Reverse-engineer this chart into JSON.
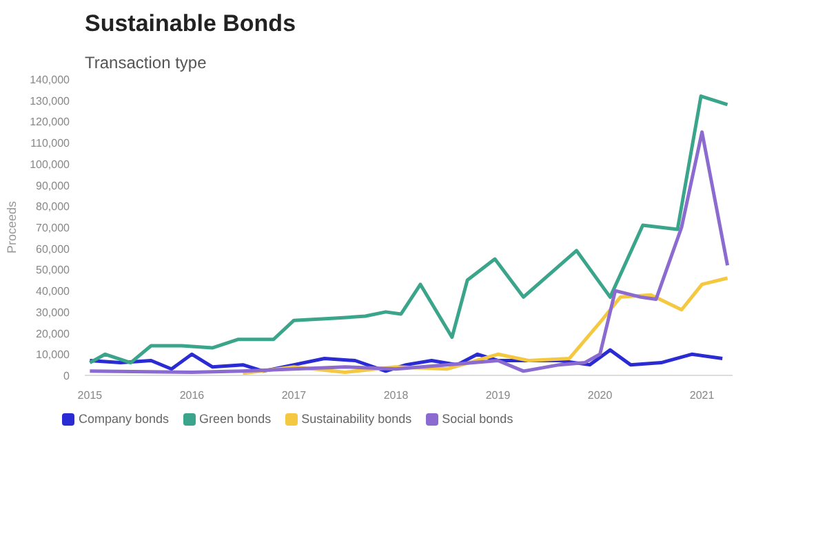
{
  "chart_data": {
    "type": "line",
    "title": "Sustainable Bonds",
    "subtitle": "Transaction type",
    "ylabel": "Proceeds",
    "xlim": [
      2014.95,
      2021.3
    ],
    "xticks": [
      2015,
      2016,
      2017,
      2018,
      2019,
      2020,
      2021
    ],
    "ylim": [
      0,
      140000
    ],
    "yticks": [
      0,
      {
        "value": 10000,
        "label": "10,000"
      },
      {
        "value": 20000,
        "label": "20,000"
      },
      {
        "value": 30000,
        "label": "30,000"
      },
      {
        "value": 40000,
        "label": "40,000"
      },
      {
        "value": 50000,
        "label": "50,000"
      },
      {
        "value": 60000,
        "label": "60,000"
      },
      {
        "value": 70000,
        "label": "70,000"
      },
      {
        "value": 80000,
        "label": "80,000"
      },
      {
        "value": 90000,
        "label": "90,000"
      },
      {
        "value": 100000,
        "label": "100,000"
      },
      {
        "value": 110000,
        "label": "110,000"
      },
      {
        "value": 120000,
        "label": "120,000"
      },
      {
        "value": 130000,
        "label": "130,000"
      },
      {
        "value": 140000,
        "label": "140,000"
      }
    ],
    "grid": false,
    "legend": "bottom",
    "series": [
      {
        "name": "Company bonds",
        "color": "#2b2bd4",
        "x": [
          2015,
          2015.3,
          2015.6,
          2015.8,
          2016.0,
          2016.2,
          2016.5,
          2016.7,
          2017.0,
          2017.3,
          2017.6,
          2017.9,
          2018.1,
          2018.35,
          2018.6,
          2018.8,
          2019.0,
          2019.3,
          2019.6,
          2019.9,
          2020.1,
          2020.3,
          2020.6,
          2020.9,
          2021.2
        ],
        "values": [
          7000,
          6000,
          7000,
          3000,
          10000,
          4000,
          5000,
          2000,
          5000,
          8000,
          7000,
          2000,
          5000,
          7000,
          5000,
          10000,
          7000,
          7000,
          7000,
          5000,
          12000,
          5000,
          6000,
          10000,
          8000
        ]
      },
      {
        "name": "Green bonds",
        "color": "#3aa58a",
        "x": [
          2015,
          2015.15,
          2015.4,
          2015.6,
          2015.9,
          2016.2,
          2016.45,
          2016.8,
          2017.0,
          2017.4,
          2017.7,
          2017.9,
          2018.05,
          2018.24,
          2018.55,
          2018.7,
          2018.97,
          2019.25,
          2019.77,
          2020.1,
          2020.42,
          2020.76,
          2020.99,
          2021.25
        ],
        "values": [
          6000,
          10000,
          6000,
          14000,
          14000,
          13000,
          17000,
          17000,
          26000,
          27000,
          28000,
          30000,
          29000,
          43000,
          18000,
          45000,
          55000,
          37000,
          59000,
          37000,
          71000,
          69000,
          132000,
          128000
        ]
      },
      {
        "name": "Sustainability bonds",
        "color": "#f5c842",
        "x": [
          2016.5,
          2017.0,
          2017.5,
          2018.0,
          2018.5,
          2019.0,
          2019.3,
          2019.7,
          2020.0,
          2020.2,
          2020.5,
          2020.8,
          2021.0,
          2021.25
        ],
        "values": [
          1000,
          4000,
          1500,
          4000,
          3000,
          10000,
          7000,
          8000,
          25000,
          37000,
          38000,
          31000,
          43000,
          46000
        ]
      },
      {
        "name": "Social bonds",
        "color": "#8c6bd1",
        "x": [
          2015,
          2016,
          2016.5,
          2017,
          2017.5,
          2018,
          2018.5,
          2019.0,
          2019.25,
          2019.6,
          2019.85,
          2020.0,
          2020.15,
          2020.4,
          2020.55,
          2020.8,
          2021.0,
          2021.25
        ],
        "values": [
          2000,
          1500,
          2000,
          3000,
          4000,
          3000,
          5000,
          7000,
          2000,
          5000,
          6000,
          10000,
          40000,
          37000,
          36000,
          70000,
          115000,
          52000
        ]
      }
    ]
  }
}
